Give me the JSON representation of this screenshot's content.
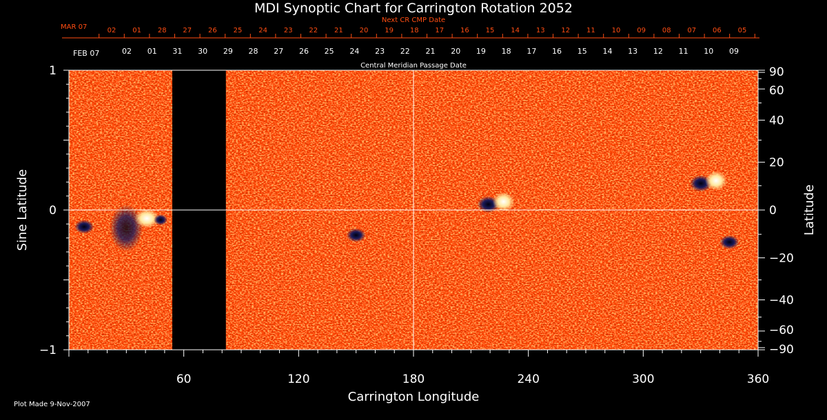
{
  "colors": {
    "background": "#000000",
    "axis": "#ffffff",
    "next_cr": "#ff4d12",
    "map_base": "#ff4500",
    "map_bright": "#ffe08a",
    "map_dark": "#101050"
  },
  "chart_data": {
    "type": "heatmap",
    "title": "MDI Synoptic Chart for Carrington Rotation 2052",
    "xlabel": "Carrington Longitude",
    "ylabel_left": "Sine Latitude",
    "ylabel_right": "Latitude",
    "xlim": [
      0,
      360
    ],
    "ylim": [
      -1,
      1
    ],
    "x_ticks": [
      60,
      120,
      180,
      240,
      300,
      360
    ],
    "y_ticks_left": [
      1,
      0,
      -1
    ],
    "y_ticks_left_labels": [
      "1",
      "0",
      "−1"
    ],
    "y_ticks_right": [
      90,
      60,
      40,
      20,
      0,
      -20,
      -40,
      -60,
      -90
    ],
    "y_ticks_right_labels": [
      "90",
      "60",
      "40",
      "20",
      "0",
      "−20",
      "−40",
      "−60",
      "−90"
    ],
    "gridlines": [
      {
        "axis": "x",
        "value": 180
      },
      {
        "axis": "y",
        "value": 0
      }
    ],
    "data_gap": {
      "lon_start": 54,
      "lon_end": 82
    },
    "active_regions": [
      {
        "lon": 40,
        "sinlat": -0.08,
        "polarity": "mixed"
      },
      {
        "lon": 8,
        "sinlat": -0.12,
        "polarity": "negative"
      },
      {
        "lon": 150,
        "sinlat": -0.18,
        "polarity": "negative"
      },
      {
        "lon": 222,
        "sinlat": 0.05,
        "polarity": "bipolar"
      },
      {
        "lon": 333,
        "sinlat": 0.2,
        "polarity": "bipolar"
      },
      {
        "lon": 345,
        "sinlat": -0.23,
        "polarity": "negative"
      }
    ],
    "next_cr_axis": {
      "label": "Next CR CMP Date",
      "start_label": "MAR 07",
      "dates": [
        "02",
        "01",
        "28",
        "27",
        "26",
        "25",
        "24",
        "23",
        "22",
        "21",
        "20",
        "19",
        "18",
        "17",
        "16",
        "15",
        "14",
        "13",
        "12",
        "11",
        "10",
        "09",
        "08",
        "07",
        "06",
        "05"
      ]
    },
    "cmp_axis": {
      "label": "Central Meridian Passage Date",
      "start_label": "FEB 07",
      "dates": [
        "02",
        "01",
        "31",
        "30",
        "29",
        "28",
        "27",
        "26",
        "25",
        "24",
        "23",
        "22",
        "21",
        "20",
        "19",
        "18",
        "17",
        "16",
        "15",
        "14",
        "13",
        "12",
        "11",
        "10",
        "09"
      ]
    }
  },
  "footer": {
    "plot_made": "Plot Made  9-Nov-2007"
  }
}
